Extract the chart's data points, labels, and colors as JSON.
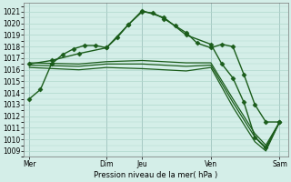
{
  "bg_color": "#d4eee8",
  "plot_bg_color": "#d4eee8",
  "grid_color": "#b0d8cc",
  "line_color": "#1a5c1a",
  "xlabel": "Pression niveau de la mer( hPa )",
  "ylim": [
    1008.5,
    1021.8
  ],
  "yticks": [
    1009,
    1010,
    1011,
    1012,
    1013,
    1014,
    1015,
    1016,
    1017,
    1018,
    1019,
    1020,
    1021
  ],
  "xlim": [
    0,
    9.6
  ],
  "xtick_labels": [
    "Mer",
    "Dim",
    "Jeu",
    "Ven",
    "Sam"
  ],
  "xtick_positions": [
    0.2,
    3.0,
    4.3,
    6.8,
    9.3
  ],
  "vlines": [
    0.2,
    3.0,
    4.3,
    6.8,
    9.3
  ],
  "lines": [
    {
      "x": [
        0.2,
        0.6,
        1.0,
        1.4,
        1.8,
        2.2,
        2.6,
        3.0,
        3.4,
        3.8,
        4.3,
        4.7,
        5.1,
        5.5,
        5.9,
        6.3,
        6.8,
        7.2,
        7.6,
        8.0,
        8.4,
        8.8,
        9.3
      ],
      "y": [
        1013.5,
        1014.3,
        1016.5,
        1017.3,
        1017.8,
        1018.1,
        1018.1,
        1017.9,
        1018.8,
        1019.9,
        1021.0,
        1020.9,
        1020.4,
        1019.8,
        1019.2,
        1018.3,
        1017.9,
        1018.2,
        1018.0,
        1015.6,
        1013.0,
        1011.5,
        1011.5
      ],
      "marker": "D",
      "markersize": 2.5,
      "linewidth": 1.0,
      "zorder": 4
    },
    {
      "x": [
        0.2,
        1.0,
        2.0,
        3.0,
        3.8,
        4.3,
        5.1,
        5.9,
        6.8,
        7.2,
        7.6,
        8.0,
        8.4,
        8.8,
        9.3
      ],
      "y": [
        1016.5,
        1016.8,
        1017.4,
        1017.9,
        1019.9,
        1021.1,
        1020.5,
        1019.0,
        1018.2,
        1016.5,
        1015.3,
        1013.2,
        1010.2,
        1009.3,
        1011.5
      ],
      "marker": "D",
      "markersize": 2.5,
      "linewidth": 1.0,
      "zorder": 4
    },
    {
      "x": [
        0.2,
        2.0,
        3.0,
        4.3,
        5.9,
        6.8,
        7.6,
        8.4,
        8.8,
        9.3
      ],
      "y": [
        1016.6,
        1016.5,
        1016.7,
        1016.8,
        1016.6,
        1016.6,
        1013.5,
        1010.5,
        1009.5,
        1011.5
      ],
      "marker": null,
      "markersize": 0,
      "linewidth": 0.9,
      "zorder": 3
    },
    {
      "x": [
        0.2,
        2.0,
        3.0,
        4.3,
        5.9,
        6.8,
        7.6,
        8.4,
        8.8,
        9.3
      ],
      "y": [
        1016.4,
        1016.3,
        1016.5,
        1016.5,
        1016.3,
        1016.4,
        1013.2,
        1010.2,
        1009.2,
        1011.5
      ],
      "marker": null,
      "markersize": 0,
      "linewidth": 0.9,
      "zorder": 3
    },
    {
      "x": [
        0.2,
        2.0,
        3.0,
        4.3,
        5.9,
        6.8,
        7.6,
        8.4,
        8.8,
        9.3
      ],
      "y": [
        1016.2,
        1016.0,
        1016.2,
        1016.1,
        1015.9,
        1016.2,
        1012.8,
        1009.8,
        1009.0,
        1011.5
      ],
      "marker": null,
      "markersize": 0,
      "linewidth": 0.9,
      "zorder": 3
    }
  ]
}
